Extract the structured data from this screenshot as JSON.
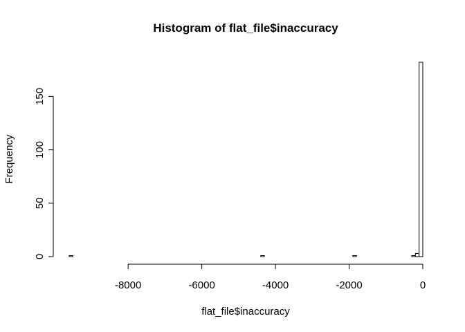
{
  "chart_data": {
    "type": "bar",
    "title": "Histogram of flat_file$inaccuracy",
    "xlabel": "flat_file$inaccuracy",
    "ylabel": "Frequency",
    "xlim": [
      -9600,
      0
    ],
    "ylim": [
      0,
      182
    ],
    "x_ticks": [
      -8000,
      -6000,
      -4000,
      -2000,
      0
    ],
    "y_ticks": [
      0,
      50,
      100,
      150
    ],
    "bin_width": 100,
    "bins": [
      {
        "start": -9600,
        "end": -9500,
        "count": 1
      },
      {
        "start": -4400,
        "end": -4300,
        "count": 1
      },
      {
        "start": -1900,
        "end": -1800,
        "count": 1
      },
      {
        "start": -300,
        "end": -200,
        "count": 1
      },
      {
        "start": -200,
        "end": -100,
        "count": 3
      },
      {
        "start": -100,
        "end": 0,
        "count": 182
      }
    ],
    "grid": false,
    "legend": "none"
  }
}
